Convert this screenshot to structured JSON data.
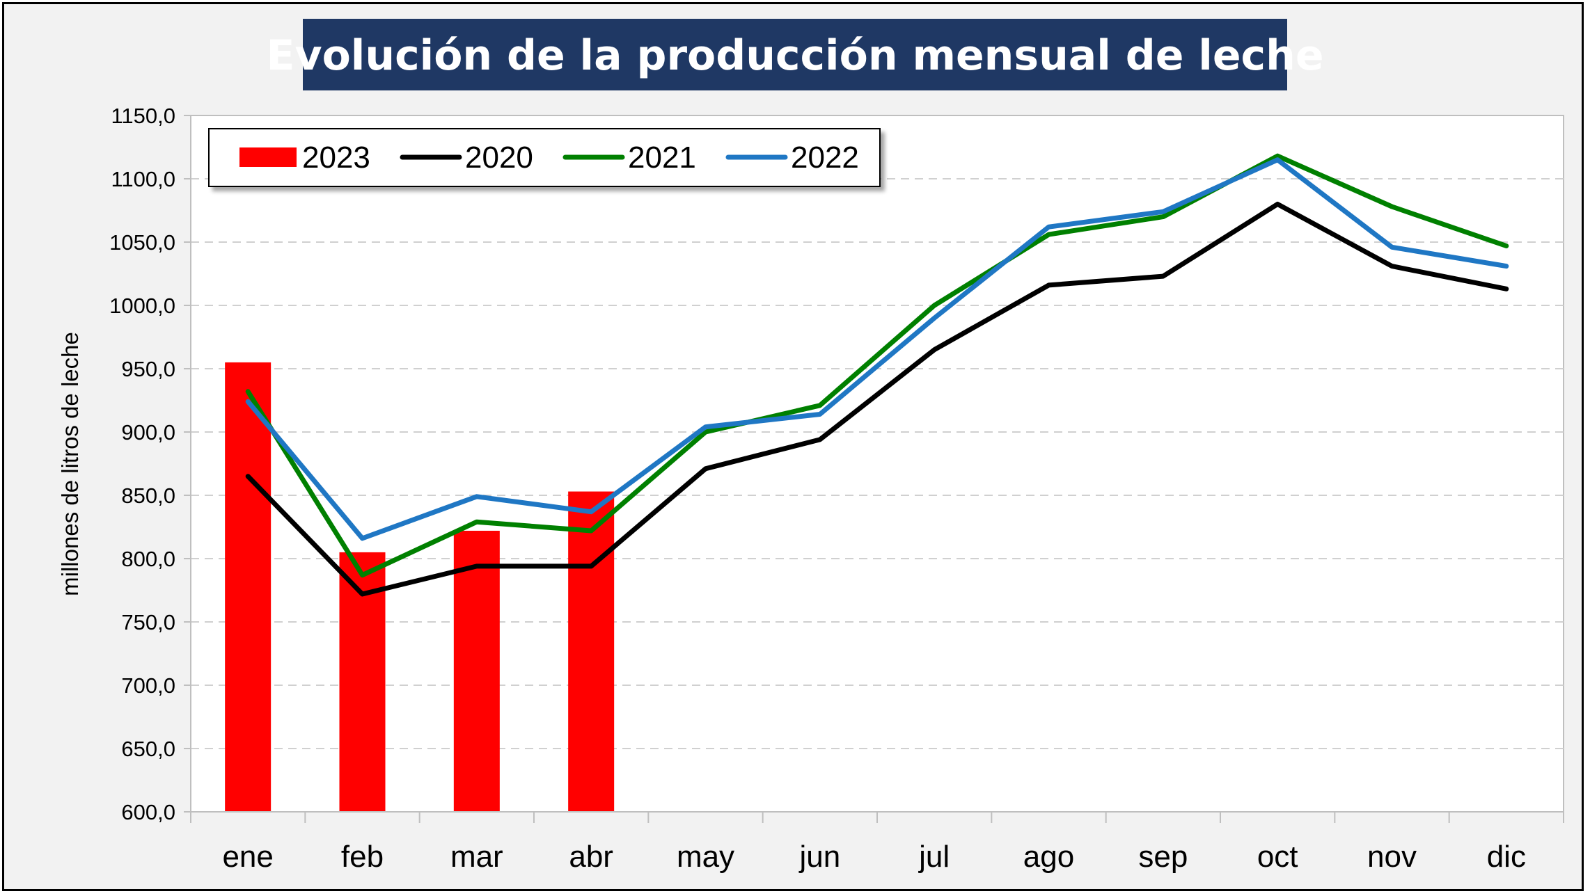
{
  "chart_data": {
    "type": "bar+line",
    "title": "Evolución de la producción mensual de leche",
    "ylabel": "millones de litros de leche",
    "xlabel": "",
    "ylim": [
      600,
      1150
    ],
    "ytick_step": 50,
    "ytick_labels": [
      "600,0",
      "650,0",
      "700,0",
      "750,0",
      "800,0",
      "850,0",
      "900,0",
      "950,0",
      "1000,0",
      "1050,0",
      "1100,0",
      "1150,0"
    ],
    "grid": true,
    "legend_position": "top-left",
    "categories": [
      "ene",
      "feb",
      "mar",
      "abr",
      "may",
      "jun",
      "jul",
      "ago",
      "sep",
      "oct",
      "nov",
      "dic"
    ],
    "bar_series": {
      "name": "2023",
      "color": "#ff0000",
      "values": [
        955,
        805,
        822,
        853
      ]
    },
    "line_series": [
      {
        "name": "2020",
        "color": "#000000",
        "values": [
          865,
          772,
          794,
          794,
          871,
          894,
          965,
          1016,
          1023,
          1080,
          1031,
          1013
        ]
      },
      {
        "name": "2021",
        "color": "#008000",
        "values": [
          932,
          787,
          829,
          822,
          900,
          921,
          1000,
          1056,
          1070,
          1118,
          1078,
          1047
        ]
      },
      {
        "name": "2022",
        "color": "#1f77c4",
        "values": [
          924,
          816,
          849,
          837,
          904,
          914,
          990,
          1062,
          1074,
          1115,
          1046,
          1031
        ]
      }
    ]
  }
}
